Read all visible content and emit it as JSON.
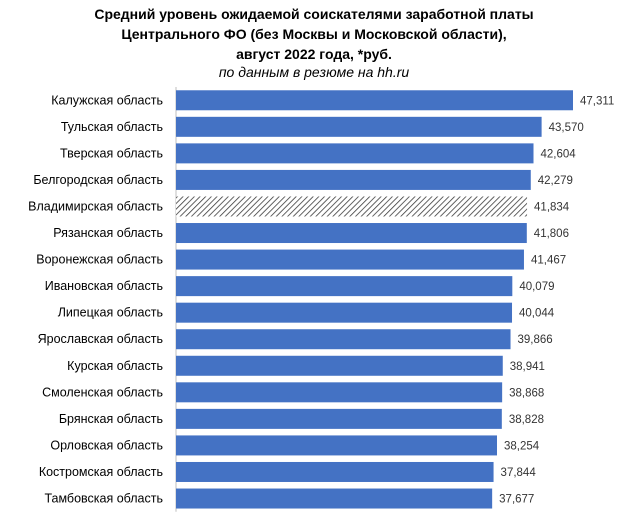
{
  "title_lines": [
    "Средний уровень ожидаемой соискателями заработной платы",
    "Центрального ФО (без Москвы и Московской области),",
    "август 2022 года, *руб."
  ],
  "subtitle": "по данным в резюме на hh.ru",
  "colors": {
    "bar": "#4472C4",
    "hatched_bar": "#3a3a3a",
    "text": "#000000"
  },
  "chart_data": {
    "type": "bar",
    "orientation": "horizontal",
    "title": "Средний уровень ожидаемой соискателями заработной платы Центрального ФО (без Москвы и Московской области), август 2022 года, *руб.",
    "subtitle": "по данным в резюме на hh.ru",
    "categories": [
      "Калужская область",
      "Тульская область",
      "Тверская область",
      "Белгородская область",
      "Владимирская область",
      "Рязанская область",
      "Воронежская область",
      "Ивановская область",
      "Липецкая область",
      "Ярославская область",
      "Курская область",
      "Смоленская область",
      "Брянская область",
      "Орловская область",
      "Костромская область",
      "Тамбовская область"
    ],
    "values": [
      47311,
      43570,
      42604,
      42279,
      41834,
      41806,
      41467,
      40079,
      40044,
      39866,
      38941,
      38868,
      38828,
      38254,
      37844,
      37677
    ],
    "value_labels": [
      "47,311",
      "43,570",
      "42,604",
      "42,279",
      "41,834",
      "41,806",
      "41,467",
      "40,079",
      "40,044",
      "39,866",
      "38,941",
      "38,868",
      "38,828",
      "38,254",
      "37,844",
      "37,677"
    ],
    "highlighted_category": "Владимирская область",
    "highlight_style": "hatched",
    "xlim": [
      0,
      50000
    ],
    "grid": false,
    "legend": "none"
  }
}
